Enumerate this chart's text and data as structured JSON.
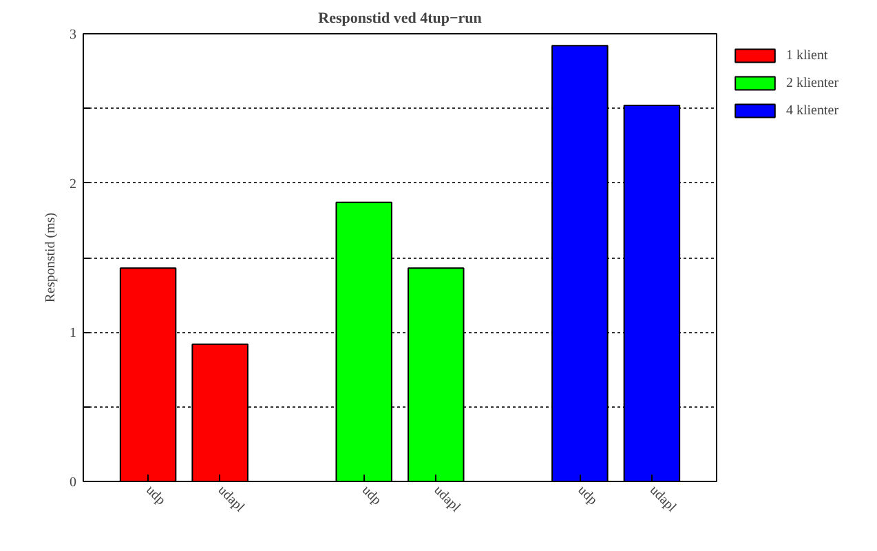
{
  "chart_data": {
    "type": "bar",
    "title": "Responstid ved 4tup−run",
    "ylabel": "Responstid (ms)",
    "categories": [
      "udp",
      "udapl",
      null,
      "udp",
      "udapl",
      null,
      "udp",
      "udapl"
    ],
    "series": [
      {
        "name": "1 klient",
        "color": "#ff0000",
        "values": [
          1.43,
          0.92,
          null,
          null,
          null,
          null,
          null,
          null
        ]
      },
      {
        "name": "2 klienter",
        "color": "#00ff00",
        "values": [
          null,
          null,
          null,
          1.87,
          1.43,
          null,
          null,
          null
        ]
      },
      {
        "name": "4 klienter",
        "color": "#0000ff",
        "values": [
          null,
          null,
          null,
          null,
          null,
          null,
          2.92,
          2.52
        ]
      }
    ],
    "ylim": [
      0,
      3
    ],
    "yticks": [
      0,
      {
        "value": 0.5,
        "label": null
      },
      1,
      {
        "value": 1.5,
        "label": null
      },
      2,
      {
        "value": 2.5,
        "label": null
      },
      3
    ],
    "grid": "y",
    "legend": "top right"
  }
}
